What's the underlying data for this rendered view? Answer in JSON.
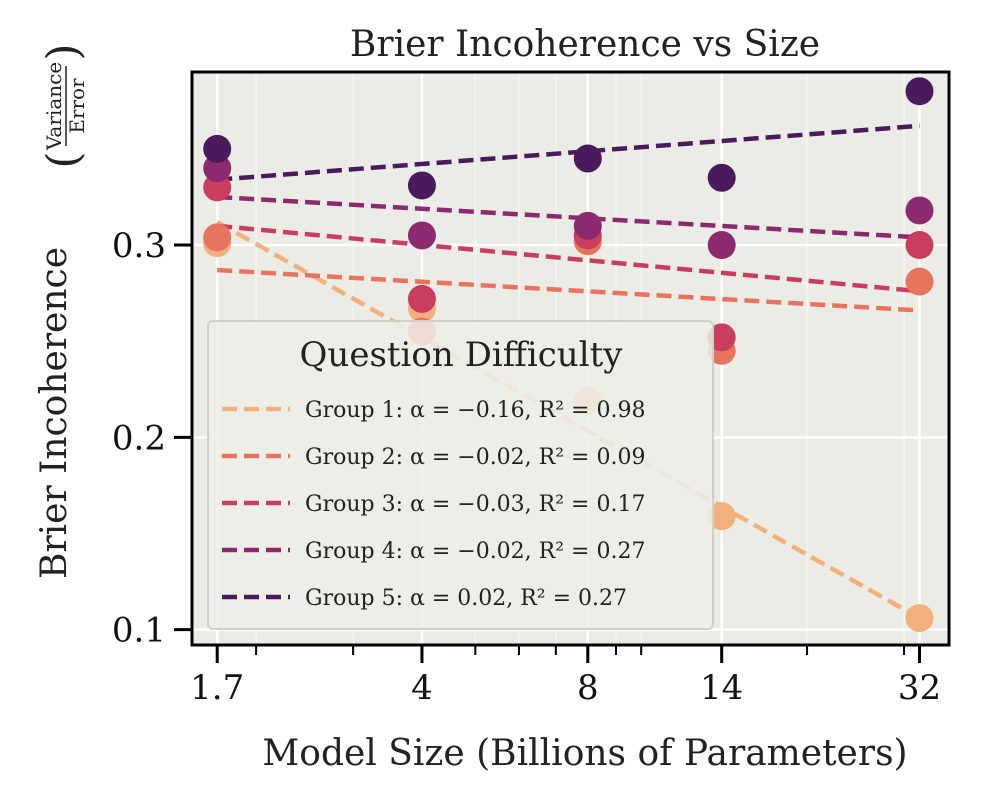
{
  "chart_data": {
    "type": "scatter",
    "title": "Brier Incoherence vs Size",
    "xlabel": "Model Size (Billions of Parameters)",
    "ylabel": "Brier Incoherence",
    "ylabel_fraction": {
      "numerator": "Variance",
      "denominator": "Error"
    },
    "xscale": "log",
    "x": [
      1.7,
      4,
      8,
      14,
      32
    ],
    "x_tick_labels": [
      "1.7",
      "4",
      "8",
      "14",
      "32"
    ],
    "y_ticks": [
      0.1,
      0.2,
      0.3
    ],
    "y_tick_labels": [
      "0.1",
      "0.2",
      "0.3"
    ],
    "xlim": [
      1.53,
      36.2
    ],
    "ylim": [
      0.092,
      0.39
    ],
    "grid": true,
    "legend": {
      "title": "Question Difficulty",
      "placement": "lower-left"
    },
    "series": [
      {
        "name": "Group 1: α = −0.16, R² = 0.98",
        "color": "#f2b07e",
        "values": [
          0.301,
          0.267,
          0.219,
          0.159,
          0.106
        ],
        "fit": [
          0.312,
          0.106
        ]
      },
      {
        "name": "Group 2: α = −0.02, R² = 0.09",
        "color": "#e8735f",
        "values": [
          0.304,
          0.255,
          0.302,
          0.245,
          0.281
        ],
        "fit": [
          0.287,
          0.266
        ]
      },
      {
        "name": "Group 3: α = −0.03, R² = 0.17",
        "color": "#c93d5e",
        "values": [
          0.33,
          0.272,
          0.305,
          0.252,
          0.3
        ],
        "fit": [
          0.31,
          0.276
        ]
      },
      {
        "name": "Group 4: α = −0.02, R² = 0.27",
        "color": "#8c2a70",
        "values": [
          0.34,
          0.305,
          0.31,
          0.3,
          0.318
        ],
        "fit": [
          0.325,
          0.304
        ]
      },
      {
        "name": "Group 5: α = 0.02, R² = 0.27",
        "color": "#4a1a5c",
        "values": [
          0.35,
          0.331,
          0.345,
          0.335,
          0.38
        ],
        "fit": [
          0.334,
          0.362
        ]
      }
    ]
  }
}
